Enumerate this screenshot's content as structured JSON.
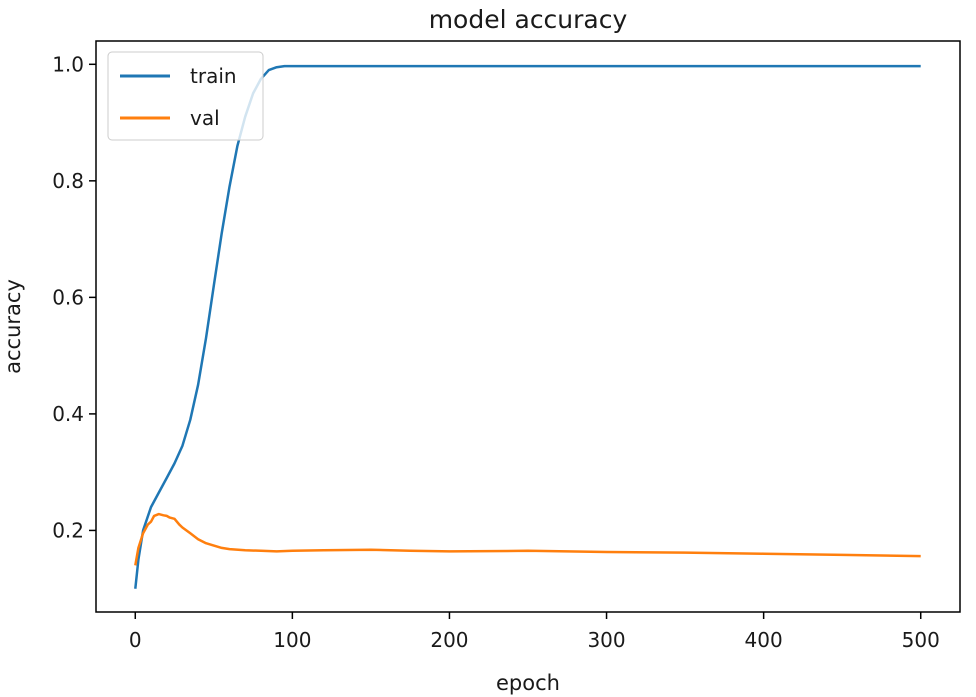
{
  "chart_data": {
    "type": "line",
    "title": "model accuracy",
    "xlabel": "epoch",
    "ylabel": "accuracy",
    "xlim": [
      -25,
      525
    ],
    "ylim": [
      0.06,
      1.04
    ],
    "xticks": [
      0,
      100,
      200,
      300,
      400,
      500
    ],
    "xtick_labels": [
      "0",
      "100",
      "200",
      "300",
      "400",
      "500"
    ],
    "yticks": [
      0.2,
      0.4,
      0.6,
      0.8,
      1.0
    ],
    "ytick_labels": [
      "0.2",
      "0.4",
      "0.6",
      "0.8",
      "1.0"
    ],
    "legend_position": "top-left",
    "grid": false,
    "series": [
      {
        "name": "train",
        "color": "#1f77b4",
        "x": [
          0,
          2,
          5,
          10,
          15,
          20,
          25,
          30,
          35,
          40,
          45,
          50,
          55,
          60,
          65,
          70,
          75,
          80,
          85,
          90,
          95,
          100,
          110,
          120,
          150,
          200,
          300,
          400,
          500
        ],
        "y": [
          0.1,
          0.15,
          0.2,
          0.24,
          0.265,
          0.29,
          0.315,
          0.345,
          0.39,
          0.45,
          0.53,
          0.62,
          0.71,
          0.79,
          0.86,
          0.91,
          0.95,
          0.975,
          0.99,
          0.995,
          0.997,
          0.997,
          0.997,
          0.997,
          0.997,
          0.997,
          0.997,
          0.997,
          0.997
        ]
      },
      {
        "name": "val",
        "color": "#ff7f0e",
        "x": [
          0,
          2,
          5,
          8,
          10,
          12,
          15,
          18,
          20,
          22,
          25,
          28,
          30,
          35,
          40,
          45,
          50,
          55,
          60,
          70,
          80,
          90,
          100,
          120,
          150,
          175,
          200,
          250,
          300,
          350,
          400,
          450,
          500
        ],
        "y": [
          0.14,
          0.17,
          0.195,
          0.21,
          0.215,
          0.225,
          0.228,
          0.226,
          0.225,
          0.222,
          0.22,
          0.21,
          0.205,
          0.195,
          0.185,
          0.178,
          0.174,
          0.17,
          0.168,
          0.166,
          0.165,
          0.164,
          0.165,
          0.166,
          0.167,
          0.165,
          0.164,
          0.165,
          0.163,
          0.162,
          0.16,
          0.158,
          0.156
        ]
      }
    ]
  }
}
